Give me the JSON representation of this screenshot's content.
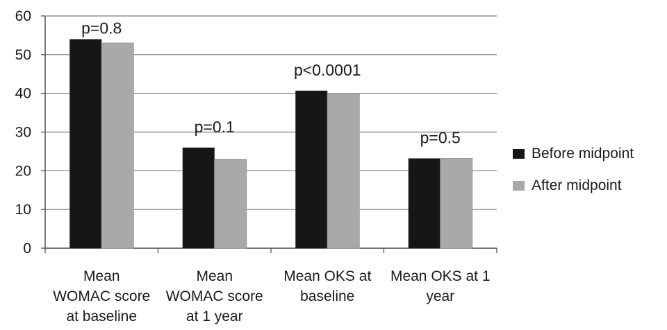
{
  "chart_data": {
    "type": "bar",
    "categories": [
      [
        "Mean",
        "WOMAC score",
        "at baseline"
      ],
      [
        "Mean",
        "WOMAC score",
        "at 1 year"
      ],
      [
        "Mean OKS at",
        "baseline"
      ],
      [
        "Mean OKS at 1",
        "year"
      ]
    ],
    "series": [
      {
        "name": "Before midpoint",
        "values": [
          54,
          26,
          40.7,
          23.2
        ],
        "color": "#161616"
      },
      {
        "name": "After midpoint",
        "values": [
          53,
          23,
          40,
          23.2
        ],
        "color": "#a9a9a9"
      }
    ],
    "annotations": [
      "p=0.8",
      "p=0.1",
      "p<0.0001",
      "p=0.5"
    ],
    "ylim": [
      0,
      60
    ],
    "yticks": [
      "0",
      "10",
      "20",
      "30",
      "40",
      "50",
      "60"
    ],
    "grid": true,
    "legend_position": "right",
    "title": "",
    "xlabel": "",
    "ylabel": ""
  }
}
